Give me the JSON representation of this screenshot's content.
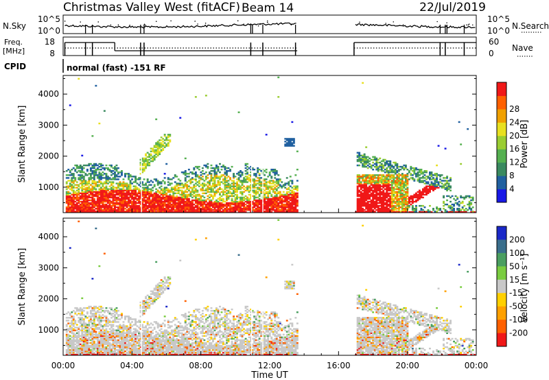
{
  "header": {
    "station": "Christmas Valley West (fitACF)",
    "beam": "Beam 14",
    "date": "22/Jul/2019"
  },
  "noise_panel": {
    "left_label": "N.Sky",
    "right_label": "N.Search",
    "left_ticks": [
      "10^5",
      "10^0"
    ],
    "right_ticks": [
      "10^5",
      "10^0"
    ]
  },
  "freq_panel": {
    "left_label_1": "Freq.",
    "left_label_2": "[MHz]",
    "right_label": "Nave",
    "left_ticks": [
      "18",
      "8"
    ],
    "right_ticks": [
      "60",
      "0"
    ]
  },
  "cpid": {
    "label": "CPID",
    "program": "normal (fast) -151 RF"
  },
  "time_axis": {
    "title": "Time UT",
    "ticks": [
      "00:00",
      "04:00",
      "08:00",
      "12:00",
      "16:00",
      "20:00",
      "00:00"
    ]
  },
  "chart_data": [
    {
      "type": "heatmap",
      "title": "",
      "xlabel": "Time UT",
      "ylabel": "Slant Range [km]",
      "x_range_hours": [
        0,
        24
      ],
      "ylim": [
        180,
        4600
      ],
      "y_ticks": [
        "1000",
        "2000",
        "3000",
        "4000"
      ],
      "colorbar": {
        "label": "Power [dB]",
        "ticks": [
          "4",
          "8",
          "12",
          "16",
          "20",
          "24",
          "28"
        ],
        "range": [
          0,
          30
        ],
        "colors": [
          "#1818e6",
          "#2060a0",
          "#3a8a60",
          "#55b050",
          "#9acd32",
          "#e8e020",
          "#f0a000",
          "#ff6000",
          "#f01818"
        ]
      },
      "data_gap_hours": [
        13.6,
        16.9
      ],
      "echo_regions": [
        {
          "t_start": 0.1,
          "t_end": 13.6,
          "range_min": 200,
          "range_max": 1500,
          "level": "strong"
        },
        {
          "t_start": 4.5,
          "t_end": 6.2,
          "range_min": 1500,
          "range_max": 2700,
          "level": "moderate"
        },
        {
          "t_start": 17.0,
          "t_end": 22.5,
          "range_min": 300,
          "range_max": 2100,
          "level": "strong"
        },
        {
          "t_start": 12.9,
          "t_end": 13.4,
          "range_min": 2300,
          "range_max": 2500,
          "level": "weak"
        }
      ]
    },
    {
      "type": "heatmap",
      "title": "",
      "xlabel": "Time UT",
      "ylabel": "Slant Range [km]",
      "x_range_hours": [
        0,
        24
      ],
      "ylim": [
        180,
        4600
      ],
      "y_ticks": [
        "1000",
        "2000",
        "3000",
        "4000"
      ],
      "colorbar": {
        "label": "Velocity [m s⁻¹]",
        "ticks": [
          "200",
          "100",
          "50",
          "15",
          "-15",
          "-50",
          "-100",
          "-200"
        ],
        "colors": [
          "#1a28c8",
          "#3a6e8c",
          "#4a9e60",
          "#7acc40",
          "#c8c8c8",
          "#ffd000",
          "#ffa000",
          "#ff6000",
          "#f01818"
        ]
      },
      "data_gap_hours": [
        13.6,
        16.9
      ]
    }
  ]
}
